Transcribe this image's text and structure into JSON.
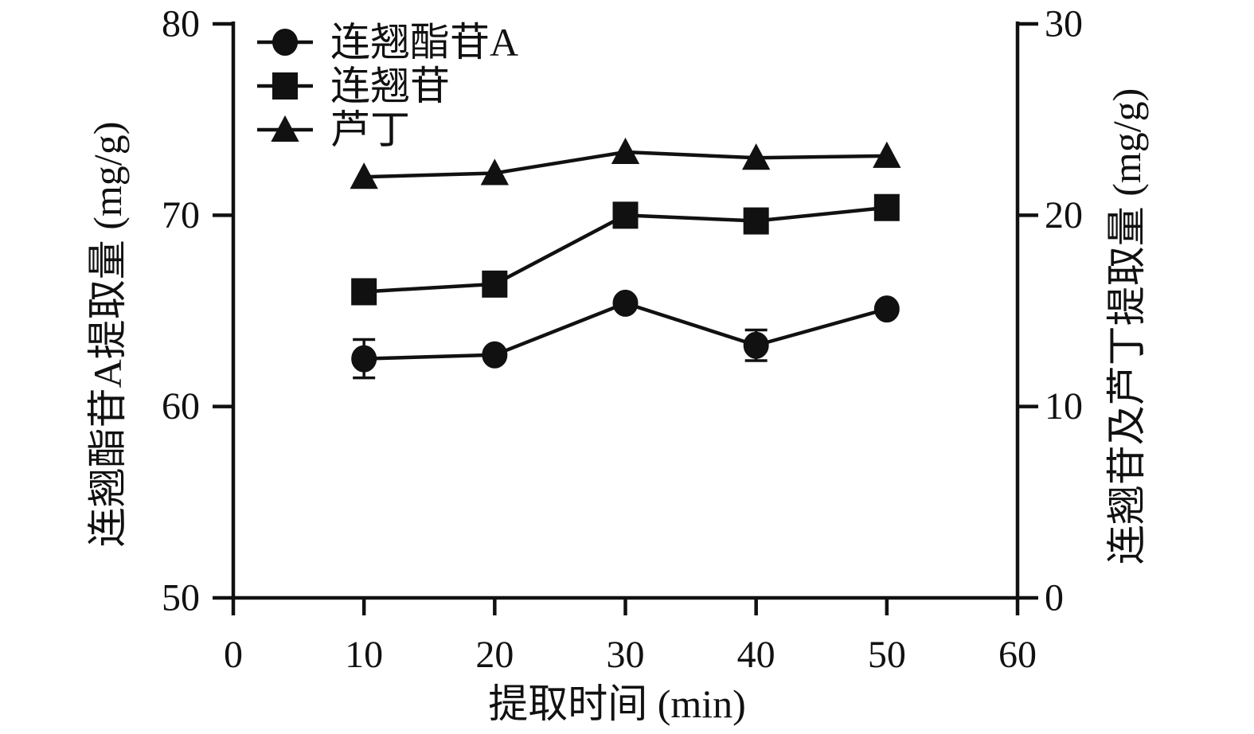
{
  "figure": {
    "background": "#ffffff",
    "ink_color": "#111111"
  },
  "axes": {
    "x": {
      "label": "提取时间 (min)",
      "ticks": [
        0,
        10,
        20,
        30,
        40,
        50,
        60
      ],
      "min": 0,
      "max": 60
    },
    "y_left": {
      "label": "连翘酯苷A提取量 (mg/g)",
      "ticks": [
        50,
        60,
        70,
        80
      ],
      "min": 50,
      "max": 80
    },
    "y_right": {
      "label": "连翘苷及芦丁提取量 (mg/g)",
      "ticks": [
        0,
        10,
        20,
        30
      ],
      "min": 0,
      "max": 30
    }
  },
  "legend": {
    "items": [
      {
        "label": "连翘酯苷A",
        "marker": "circle"
      },
      {
        "label": "连翘苷",
        "marker": "square"
      },
      {
        "label": "芦丁",
        "marker": "triangle"
      }
    ]
  },
  "chart_data": {
    "type": "line",
    "x": [
      10,
      20,
      30,
      40,
      50
    ],
    "xlabel": "提取时间 (min)",
    "ylabel_left": "连翘酯苷A提取量 (mg/g)",
    "ylabel_right": "连翘苷及芦丁提取量 (mg/g)",
    "xlim": [
      0,
      60
    ],
    "ylim_left": [
      50,
      80
    ],
    "ylim_right": [
      0,
      30
    ],
    "grid": false,
    "legend_position": "top-left",
    "series": [
      {
        "name": "连翘酯苷A",
        "axis": "left",
        "marker": "circle",
        "values": [
          62.5,
          62.7,
          65.4,
          63.2,
          65.1
        ],
        "error": [
          1.0,
          0,
          0,
          0.8,
          0
        ]
      },
      {
        "name": "连翘苷",
        "axis": "right",
        "marker": "square",
        "values": [
          16.0,
          16.4,
          20.0,
          19.7,
          20.4
        ],
        "error": [
          0,
          0,
          0,
          0,
          0
        ]
      },
      {
        "name": "芦丁",
        "axis": "right",
        "marker": "triangle",
        "values": [
          22.0,
          22.2,
          23.3,
          23.0,
          23.1
        ],
        "error": [
          0,
          0,
          0,
          0,
          0
        ]
      }
    ]
  }
}
